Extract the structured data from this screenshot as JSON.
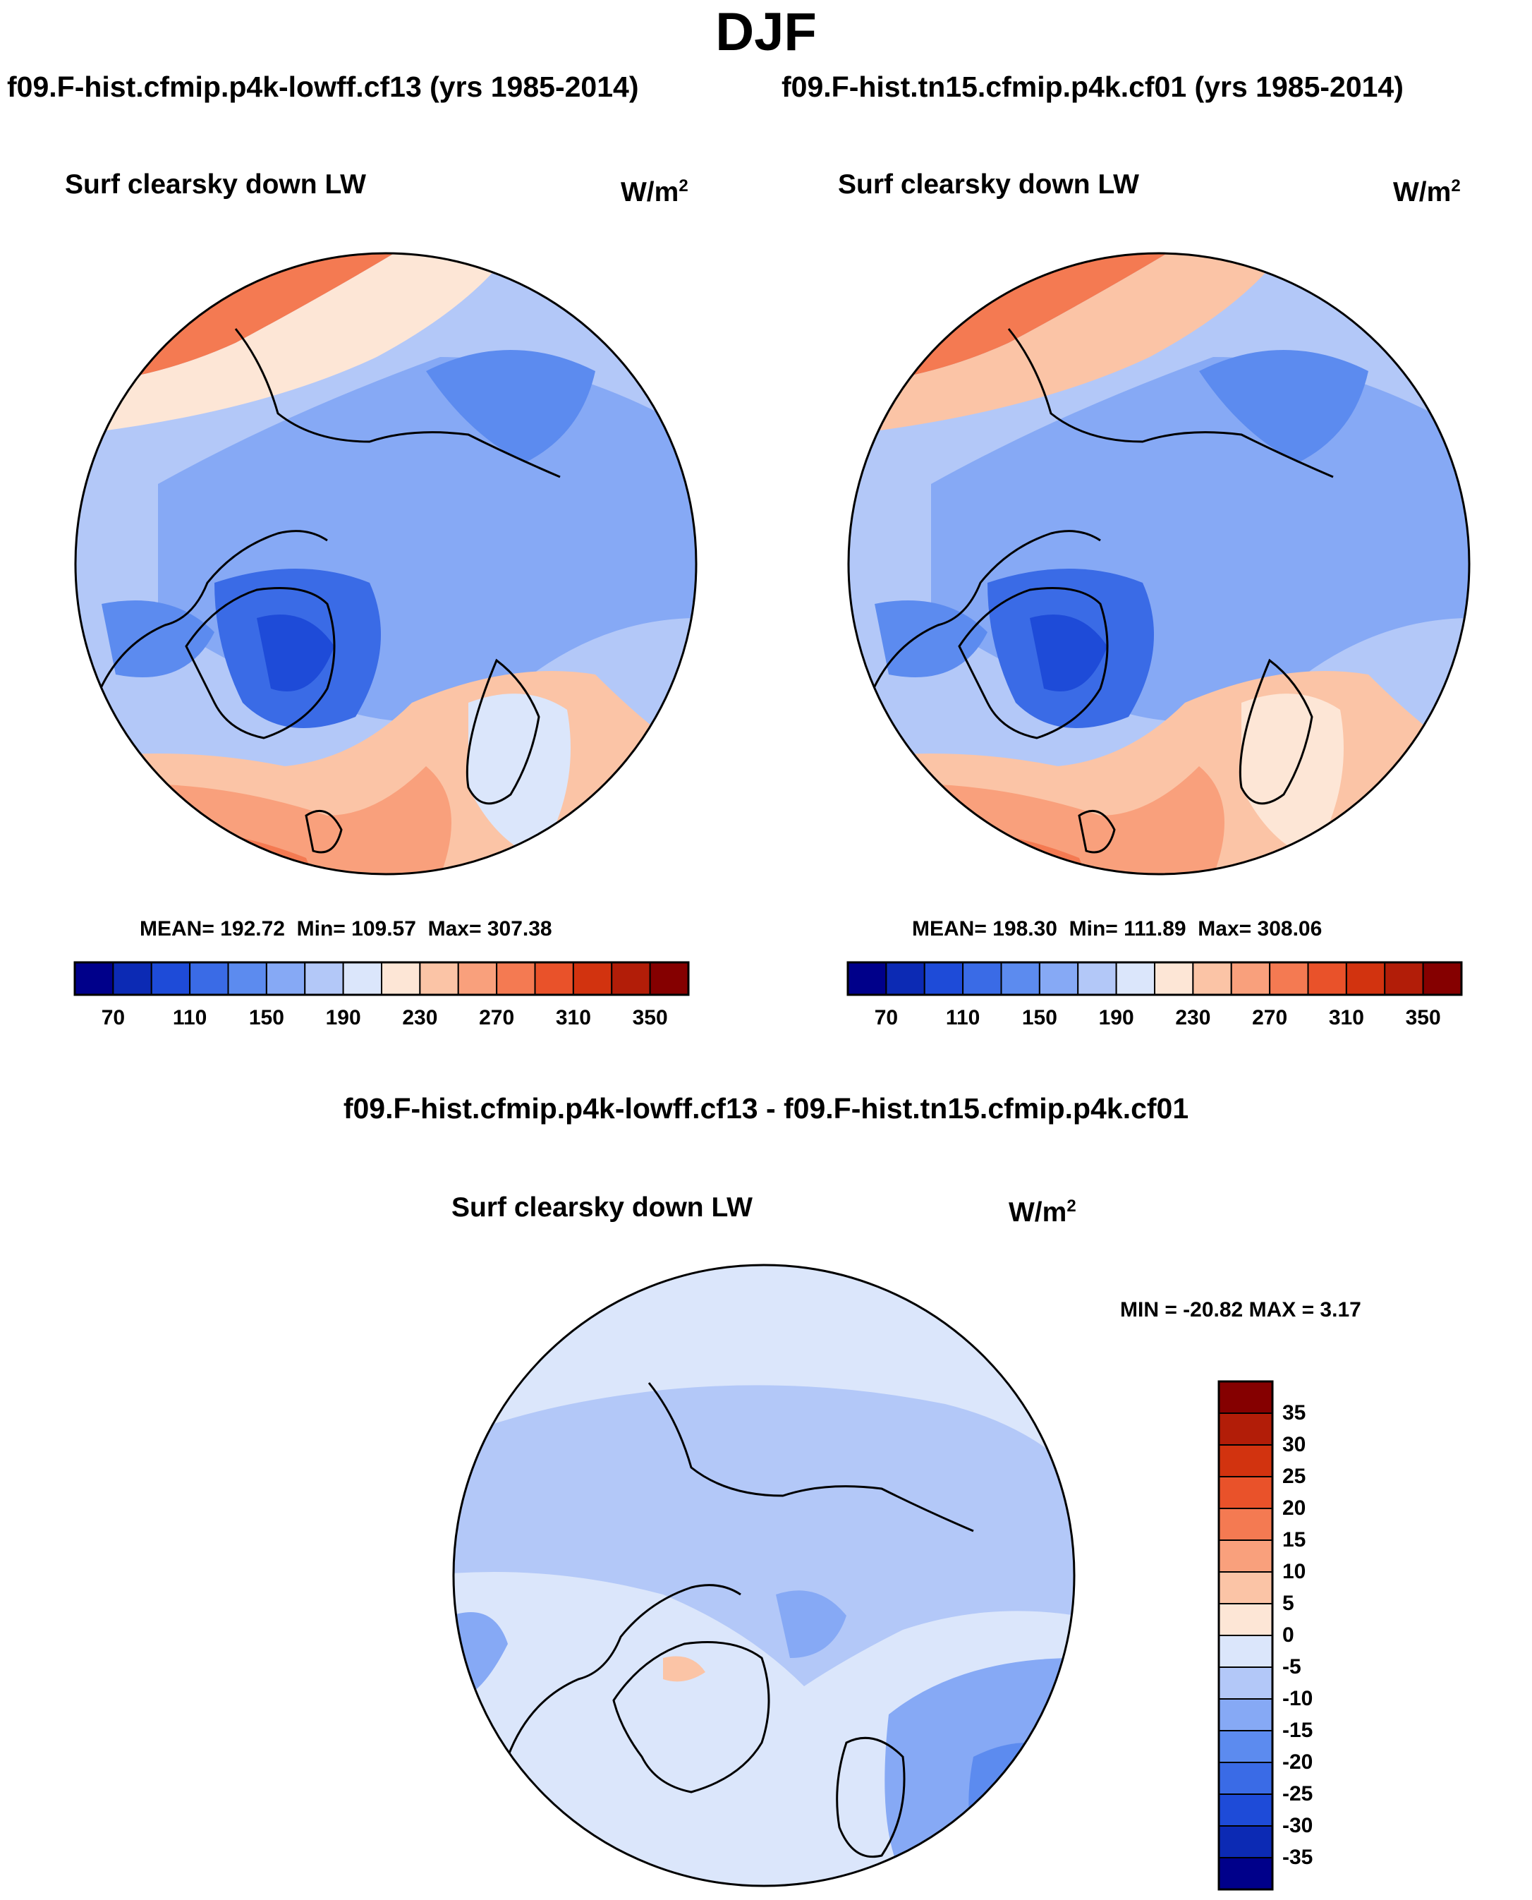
{
  "title": "DJF",
  "runs": {
    "left": "f09.F-hist.cfmip.p4k-lowff.cf13 (yrs 1985-2014)",
    "right": "f09.F-hist.tn15.cfmip.p4k.cf01 (yrs 1985-2014)"
  },
  "diff_title": "f09.F-hist.cfmip.p4k-lowff.cf13 - f09.F-hist.tn15.cfmip.p4k.cf01",
  "variable": "Surf clearsky down LW",
  "units": {
    "base": "W/m",
    "exp": "2"
  },
  "panels": [
    {
      "mean_label": "MEAN=",
      "mean": "192.72",
      "min_label": "Min=",
      "min": "109.57",
      "max_label": "Max=",
      "max": "307.38"
    },
    {
      "mean_label": "MEAN=",
      "mean": "198.30",
      "min_label": "Min=",
      "min": "111.89",
      "max_label": "Max=",
      "max": "308.06"
    }
  ],
  "colorbar": {
    "ticks": [
      "70",
      "110",
      "150",
      "190",
      "230",
      "270",
      "310",
      "350"
    ],
    "colors": [
      "#00008a",
      "#0c2ab4",
      "#1e4bd8",
      "#3a6be6",
      "#5c8bef",
      "#86a9f5",
      "#b3c8f8",
      "#dbe6fb",
      "#fde6d6",
      "#fbc4a6",
      "#f9a07c",
      "#f47a52",
      "#e9522a",
      "#d2330f",
      "#b21d08",
      "#850000"
    ]
  },
  "diff": {
    "minmax": "MIN = -20.82 MAX =   3.17",
    "colorbar_labels": [
      "35",
      "30",
      "25",
      "20",
      "15",
      "10",
      "5",
      "0",
      "-5",
      "-10",
      "-15",
      "-20",
      "-25",
      "-30",
      "-35"
    ],
    "colorbar_colors": [
      "#850000",
      "#b21d08",
      "#d2330f",
      "#e9522a",
      "#f47a52",
      "#f9a07c",
      "#fbc4a6",
      "#fde6d6",
      "#dbe6fb",
      "#b3c8f8",
      "#86a9f5",
      "#5c8bef",
      "#3a6be6",
      "#1e4bd8",
      "#0c2ab4",
      "#00008a"
    ]
  }
}
